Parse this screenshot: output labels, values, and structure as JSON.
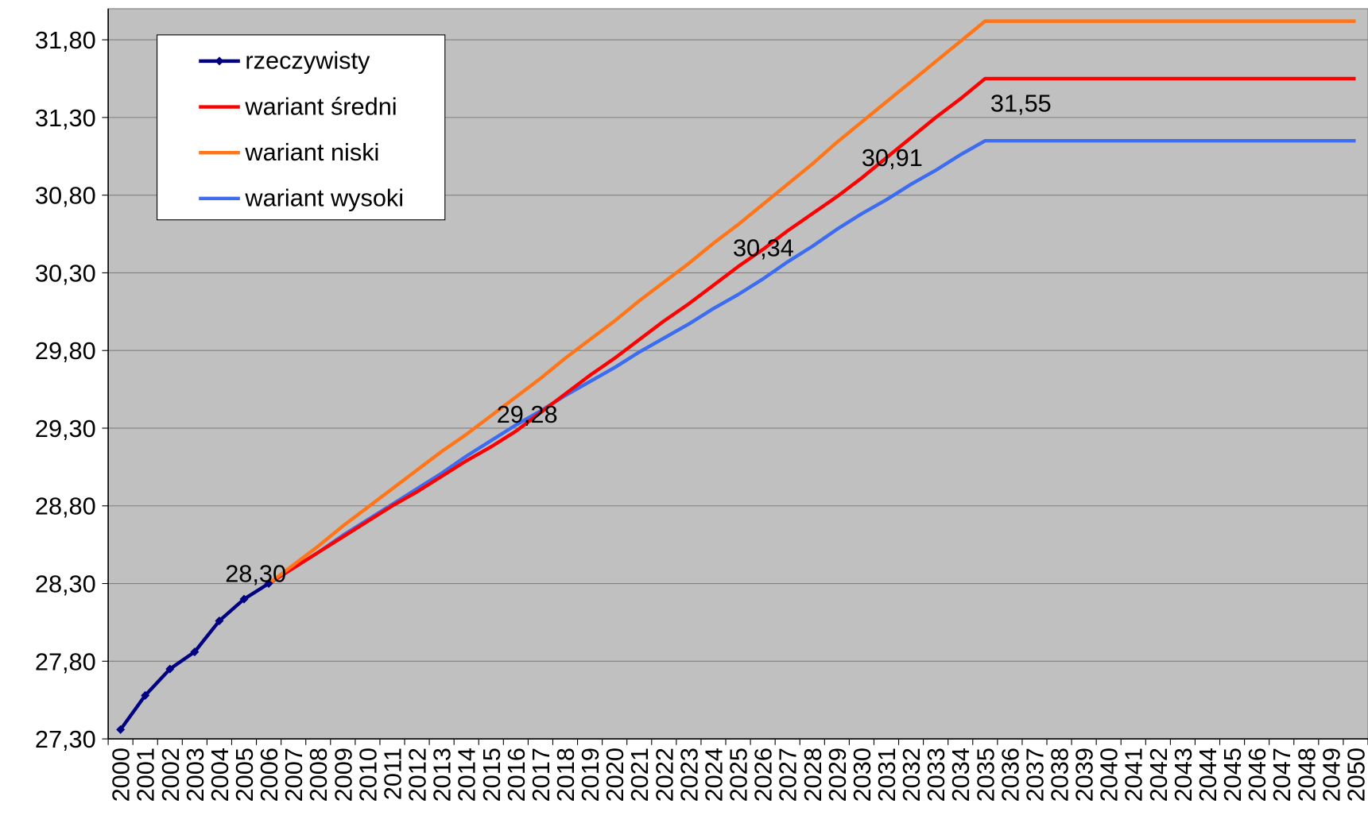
{
  "chart_data": {
    "type": "line",
    "categories": [
      "2000",
      "2001",
      "2002",
      "2003",
      "2004",
      "2005",
      "2006",
      "2007",
      "2008",
      "2009",
      "2010",
      "2011",
      "2012",
      "2013",
      "2014",
      "2015",
      "2016",
      "2017",
      "2018",
      "2019",
      "2020",
      "2021",
      "2022",
      "2023",
      "2024",
      "2025",
      "2026",
      "2027",
      "2028",
      "2029",
      "2030",
      "2031",
      "2032",
      "2033",
      "2034",
      "2035",
      "2036",
      "2037",
      "2038",
      "2039",
      "2040",
      "2041",
      "2042",
      "2043",
      "2044",
      "2045",
      "2046",
      "2047",
      "2048",
      "2049",
      "2050"
    ],
    "series": [
      {
        "name": "rzeczywisty",
        "color": "#000080",
        "marker": true,
        "values": [
          27.36,
          27.58,
          27.75,
          27.86,
          28.06,
          28.2,
          28.3,
          null,
          null,
          null,
          null,
          null,
          null,
          null,
          null,
          null,
          null,
          null,
          null,
          null,
          null,
          null,
          null,
          null,
          null,
          null,
          null,
          null,
          null,
          null,
          null,
          null,
          null,
          null,
          null,
          null,
          null,
          null,
          null,
          null,
          null,
          null,
          null,
          null,
          null,
          null,
          null,
          null,
          null,
          null,
          null
        ],
        "value_labels": [
          null,
          null,
          null,
          null,
          null,
          null,
          "28,30",
          null,
          null,
          null,
          null,
          null,
          null,
          null,
          null,
          null,
          null,
          null,
          null,
          null,
          null,
          null,
          null,
          null,
          null,
          null,
          null,
          null,
          null,
          null,
          null,
          null,
          null,
          null,
          null,
          null,
          null,
          null,
          null,
          null,
          null,
          null,
          null,
          null,
          null,
          null,
          null,
          null,
          null,
          null,
          null
        ]
      },
      {
        "name": "wariant średni",
        "color": "#ff0000",
        "values": [
          null,
          null,
          null,
          null,
          null,
          null,
          28.3,
          28.4,
          28.5,
          28.6,
          28.7,
          28.8,
          28.89,
          28.99,
          29.09,
          29.18,
          29.28,
          29.4,
          29.52,
          29.64,
          29.75,
          29.87,
          29.99,
          30.1,
          30.22,
          30.34,
          30.45,
          30.57,
          30.68,
          30.79,
          30.91,
          31.04,
          31.17,
          31.3,
          31.42,
          31.55,
          31.55,
          31.55,
          31.55,
          31.55,
          31.55,
          31.55,
          31.55,
          31.55,
          31.55,
          31.55,
          31.55,
          31.55,
          31.55,
          31.55,
          31.55
        ],
        "value_labels": [
          null,
          null,
          null,
          null,
          null,
          null,
          null,
          null,
          null,
          null,
          null,
          null,
          null,
          null,
          null,
          null,
          "29,28",
          null,
          null,
          null,
          null,
          null,
          null,
          null,
          null,
          "30,34",
          null,
          null,
          null,
          null,
          "30,91",
          null,
          null,
          null,
          null,
          "31,55",
          null,
          null,
          null,
          null,
          null,
          null,
          null,
          null,
          null,
          null,
          null,
          null,
          null,
          null,
          null
        ]
      },
      {
        "name": "wariant niski",
        "color": "#ff7518",
        "values": [
          null,
          null,
          null,
          null,
          null,
          null,
          28.3,
          28.42,
          28.54,
          28.67,
          28.79,
          28.91,
          29.03,
          29.15,
          29.26,
          29.38,
          29.5,
          29.62,
          29.75,
          29.87,
          29.99,
          30.12,
          30.24,
          30.36,
          30.49,
          30.61,
          30.74,
          30.87,
          31.0,
          31.14,
          31.27,
          31.4,
          31.53,
          31.66,
          31.79,
          31.92,
          31.92,
          31.92,
          31.92,
          31.92,
          31.92,
          31.92,
          31.92,
          31.92,
          31.92,
          31.92,
          31.92,
          31.92,
          31.92,
          31.92,
          31.92
        ]
      },
      {
        "name": "wariant wysoki",
        "color": "#3c6cf0",
        "values": [
          null,
          null,
          null,
          null,
          null,
          null,
          28.3,
          28.4,
          28.5,
          28.61,
          28.71,
          28.81,
          28.91,
          29.01,
          29.12,
          29.22,
          29.32,
          29.41,
          29.51,
          29.6,
          29.69,
          29.79,
          29.88,
          29.97,
          30.07,
          30.16,
          30.26,
          30.37,
          30.47,
          30.58,
          30.68,
          30.77,
          30.87,
          30.96,
          31.06,
          31.15,
          31.15,
          31.15,
          31.15,
          31.15,
          31.15,
          31.15,
          31.15,
          31.15,
          31.15,
          31.15,
          31.15,
          31.15,
          31.15,
          31.15,
          31.15
        ]
      }
    ],
    "ylim": [
      27.3,
      32.0
    ],
    "yticks": [
      {
        "value": 27.3,
        "label": "27,30"
      },
      {
        "value": 27.8,
        "label": "27,80"
      },
      {
        "value": 28.3,
        "label": "28,30"
      },
      {
        "value": 28.8,
        "label": "28,80"
      },
      {
        "value": 29.3,
        "label": "29,30"
      },
      {
        "value": 29.8,
        "label": "29,80"
      },
      {
        "value": 30.3,
        "label": "30,30"
      },
      {
        "value": 30.8,
        "label": "30,80"
      },
      {
        "value": 31.3,
        "label": "31,30"
      },
      {
        "value": 31.8,
        "label": "31,80"
      }
    ],
    "grid": true,
    "legend": "upper left",
    "background": "#c0c0c0"
  }
}
